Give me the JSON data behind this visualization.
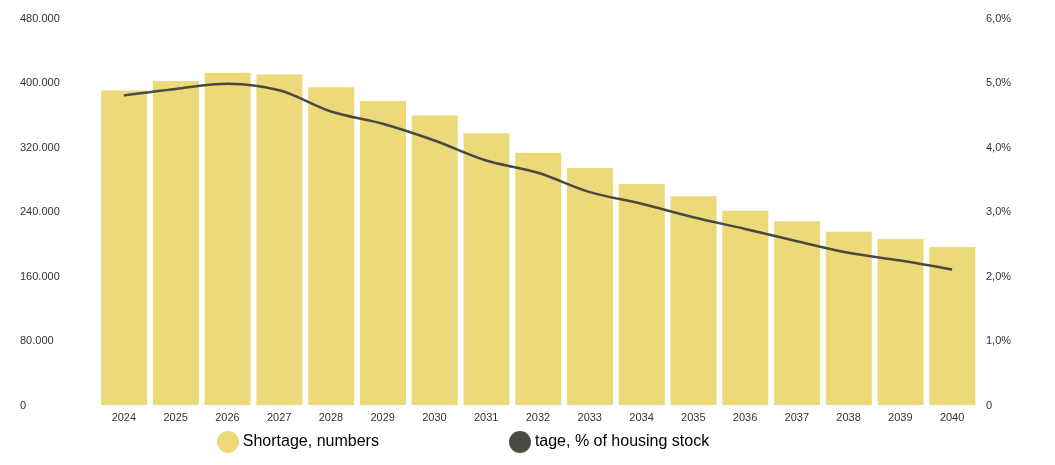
{
  "chart_data": {
    "type": "bar",
    "categories": [
      "2024",
      "2025",
      "2026",
      "2027",
      "2028",
      "2029",
      "2030",
      "2031",
      "2032",
      "2033",
      "2034",
      "2035",
      "2036",
      "2037",
      "2038",
      "2039",
      "2040"
    ],
    "series": [
      {
        "name": "Shortage, numbers",
        "color": "#ecd97a",
        "values": [
          390000,
          402000,
          412000,
          410000,
          394000,
          377000,
          359000,
          337000,
          313000,
          294000,
          274000,
          259000,
          241000,
          228000,
          215000,
          206000,
          196000
        ]
      },
      {
        "name": "tage, % of housing stock",
        "type": "line",
        "axis": "y2",
        "color": "#4a4a40",
        "values": [
          4.8,
          4.9,
          4.98,
          4.88,
          4.55,
          4.36,
          4.1,
          3.79,
          3.6,
          3.3,
          3.12,
          2.91,
          2.73,
          2.54,
          2.36,
          2.24,
          2.1
        ]
      }
    ],
    "ylim": [
      0,
      480000
    ],
    "yticks": [
      0,
      {
        "value": 80000,
        "label": "80.000"
      },
      {
        "value": 160000,
        "label": "160.000"
      },
      {
        "value": 240000,
        "label": "240.000"
      },
      {
        "value": 320000,
        "label": "320.000"
      },
      {
        "value": 400000,
        "label": "400.000"
      },
      {
        "value": 480000,
        "label": "480.000"
      }
    ],
    "y2lim": [
      0,
      6
    ],
    "y2ticks": [
      0,
      {
        "value": 1,
        "label": "1,0%"
      },
      {
        "value": 2,
        "label": "2,0%"
      },
      {
        "value": 3,
        "label": "3,0%"
      },
      {
        "value": 4,
        "label": "4,0%"
      },
      {
        "value": 5,
        "label": "5,0%"
      },
      {
        "value": 6,
        "label": "6,0%"
      }
    ],
    "grid": false,
    "legend": "bottom",
    "marker": "none"
  }
}
